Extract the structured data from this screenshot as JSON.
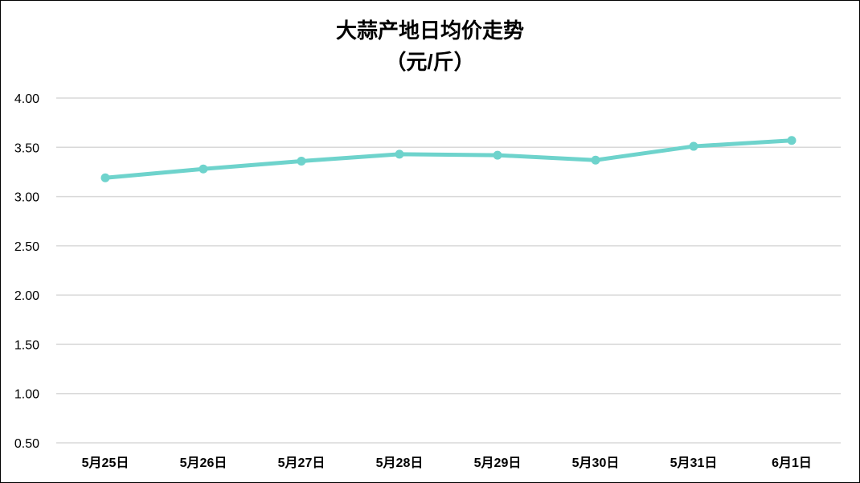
{
  "chart_data": {
    "type": "line",
    "title": "大蒜产地日均价走势",
    "subtitle": "（元/斤）",
    "xlabel": "",
    "ylabel": "",
    "categories": [
      "5月25日",
      "5月26日",
      "5月27日",
      "5月28日",
      "5月29日",
      "5月30日",
      "5月31日",
      "6月1日"
    ],
    "series": [
      {
        "values": [
          3.19,
          3.28,
          3.36,
          3.43,
          3.42,
          3.37,
          3.51,
          3.57
        ],
        "color": "#6ed3cc"
      }
    ],
    "ylim": [
      0.5,
      4.0
    ],
    "yticks": [
      "0.50",
      "1.00",
      "1.50",
      "2.00",
      "2.50",
      "3.00",
      "3.50",
      "4.00"
    ],
    "grid": true,
    "legend": "none",
    "markers": true
  }
}
